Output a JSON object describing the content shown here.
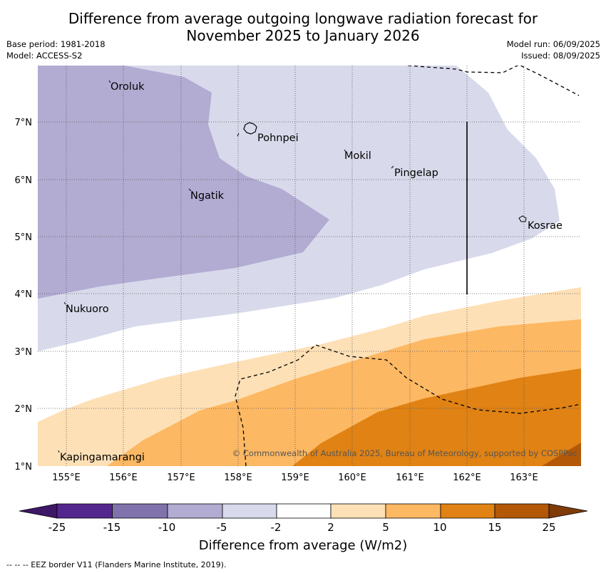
{
  "title_line1": "Difference from average outgoing longwave radiation forecast for",
  "title_line2": "November 2025 to January 2026",
  "base_period": "Base period: 1981-2018",
  "model": "Model: ACCESS-S2",
  "model_run": "Model run: 06/09/2025",
  "issued": "Issued: 08/09/2025",
  "copyright": "© Commonwealth of Australia 2025, Bureau of Meteorology, supported by COSPPac",
  "places": [
    "Oroluk",
    "Pohnpei",
    "Mokil",
    "Pingelap",
    "Ngatik",
    "Kosrae",
    "Nukuoro",
    "Kapingamarangi"
  ],
  "lat_ticks": [
    "7°N",
    "6°N",
    "5°N",
    "4°N",
    "3°N",
    "2°N",
    "1°N"
  ],
  "lon_ticks": [
    "155°E",
    "156°E",
    "157°E",
    "158°E",
    "159°E",
    "160°E",
    "161°E",
    "162°E",
    "163°E"
  ],
  "colorbar": {
    "ticks": [
      "-25",
      "-15",
      "-10",
      "-5",
      "-2",
      "2",
      "5",
      "10",
      "15",
      "25"
    ],
    "colors": [
      "#3f1768",
      "#54278f",
      "#8073ac",
      "#b2abd2",
      "#d8daeb",
      "#ffffff",
      "#fee0b6",
      "#fdb863",
      "#e08214",
      "#b35806",
      "#7f3b08"
    ],
    "label": "Difference from average (W/m2)"
  },
  "footnote": "--  --  -- EEZ border V11 (Flanders Marine Institute, 2019)."
}
